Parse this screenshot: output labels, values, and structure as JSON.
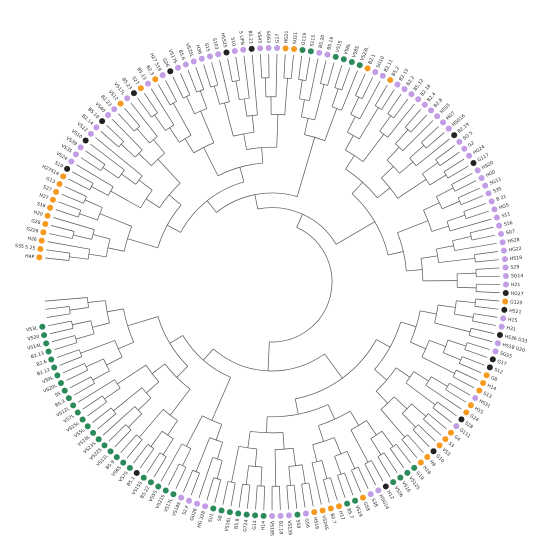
{
  "figure": {
    "kind": "circular-dendrogram",
    "leaf_order": "clockwise from top",
    "category_colors": {
      "orange": "#f59a1e",
      "black": "#222222",
      "purple": "#c39ce6",
      "green": "#2a8a5a"
    }
  },
  "leaves": [
    {
      "label": "H4P",
      "category": "orange"
    },
    {
      "label": "S35 S 25",
      "category": "orange"
    },
    {
      "label": "H26",
      "category": "orange"
    },
    {
      "label": "G226",
      "category": "orange"
    },
    {
      "label": "G26",
      "category": "orange"
    },
    {
      "label": "H20",
      "category": "orange"
    },
    {
      "label": "S16",
      "category": "orange"
    },
    {
      "label": "H27",
      "category": "orange"
    },
    {
      "label": "S27",
      "category": "orange"
    },
    {
      "label": "G13",
      "category": "orange"
    },
    {
      "label": "H27S14",
      "category": "orange"
    },
    {
      "label": "S19",
      "category": "black"
    },
    {
      "label": "VS24",
      "category": "purple"
    },
    {
      "label": "VS35",
      "category": "purple"
    },
    {
      "label": "VS39",
      "category": "purple"
    },
    {
      "label": "VS10",
      "category": "black"
    },
    {
      "label": "VS22",
      "category": "purple"
    },
    {
      "label": "B2.14",
      "category": "purple"
    },
    {
      "label": "B5.10",
      "category": "black"
    },
    {
      "label": "VS40",
      "category": "purple"
    },
    {
      "label": "B2.23",
      "category": "purple"
    },
    {
      "label": "VS12",
      "category": "orange"
    },
    {
      "label": "VS17L",
      "category": "purple"
    },
    {
      "label": "B5.23",
      "category": "black"
    },
    {
      "label": "S27",
      "category": "orange"
    },
    {
      "label": "B5.13",
      "category": "purple"
    },
    {
      "label": "B2.3",
      "category": "orange"
    },
    {
      "label": "H27 S19",
      "category": "purple"
    },
    {
      "label": "G26",
      "category": "black"
    },
    {
      "label": "VS17S",
      "category": "purple"
    },
    {
      "label": "B5.6",
      "category": "purple"
    },
    {
      "label": "VS35L",
      "category": "purple"
    },
    {
      "label": "H36",
      "category": "purple"
    },
    {
      "label": "S15",
      "category": "purple"
    },
    {
      "label": "S103",
      "category": "purple"
    },
    {
      "label": "H5S25",
      "category": "black"
    },
    {
      "label": "S10",
      "category": "purple"
    },
    {
      "label": "S UFN",
      "category": "purple"
    },
    {
      "label": "B5.21",
      "category": "black"
    },
    {
      "label": "VS45",
      "category": "purple"
    },
    {
      "label": "SG63",
      "category": "purple"
    },
    {
      "label": "G17",
      "category": "purple"
    },
    {
      "label": "HG21",
      "category": "orange"
    },
    {
      "label": "SU21",
      "category": "orange"
    },
    {
      "label": "G119",
      "category": "green"
    },
    {
      "label": "S115",
      "category": "green"
    },
    {
      "label": "B5.20",
      "category": "purple"
    },
    {
      "label": "B5.19",
      "category": "purple"
    },
    {
      "label": "VS15",
      "category": "green"
    },
    {
      "label": "VS6L",
      "category": "green"
    },
    {
      "label": "VS8S",
      "category": "green"
    },
    {
      "label": "VS23L",
      "category": "green"
    },
    {
      "label": "B2.1",
      "category": "orange"
    },
    {
      "label": "SG10",
      "category": "purple"
    },
    {
      "label": "B2.11",
      "category": "purple"
    },
    {
      "label": "B5.2",
      "category": "orange"
    },
    {
      "label": "B2.15",
      "category": "purple"
    },
    {
      "label": "B2.2",
      "category": "purple"
    },
    {
      "label": "B5.12",
      "category": "purple"
    },
    {
      "label": "B2.16",
      "category": "purple"
    },
    {
      "label": "B2.4",
      "category": "purple"
    },
    {
      "label": "B2.8",
      "category": "purple"
    },
    {
      "label": "H5S5",
      "category": "purple"
    },
    {
      "label": "HG7",
      "category": "purple"
    },
    {
      "label": "HSG16",
      "category": "purple"
    },
    {
      "label": "B2.19",
      "category": "black"
    },
    {
      "label": "SG 5",
      "category": "purple"
    },
    {
      "label": "G2",
      "category": "purple"
    },
    {
      "label": "HG24",
      "category": "purple"
    },
    {
      "label": "G117",
      "category": "black"
    },
    {
      "label": "HS20",
      "category": "purple"
    },
    {
      "label": "HG0",
      "category": "purple"
    },
    {
      "label": "SG11",
      "category": "purple"
    },
    {
      "label": "S35",
      "category": "purple"
    },
    {
      "label": "B 21",
      "category": "purple"
    },
    {
      "label": "HG5",
      "category": "purple"
    },
    {
      "label": "S11",
      "category": "purple"
    },
    {
      "label": "S16",
      "category": "purple"
    },
    {
      "label": "SG7",
      "category": "purple"
    },
    {
      "label": "HS28",
      "category": "purple"
    },
    {
      "label": "HG22",
      "category": "purple"
    },
    {
      "label": "HS18",
      "category": "purple"
    },
    {
      "label": "S29",
      "category": "purple"
    },
    {
      "label": "SG14",
      "category": "purple"
    },
    {
      "label": "H21",
      "category": "purple"
    },
    {
      "label": "HG27",
      "category": "black"
    },
    {
      "label": "G120",
      "category": "orange"
    },
    {
      "label": "H521",
      "category": "black"
    },
    {
      "label": "H15",
      "category": "purple"
    },
    {
      "label": "H31",
      "category": "purple"
    },
    {
      "label": "HS36 G33",
      "category": "black"
    },
    {
      "label": "HS18 G20",
      "category": "purple"
    },
    {
      "label": "SG25",
      "category": "purple"
    },
    {
      "label": "G17",
      "category": "black"
    },
    {
      "label": "S12",
      "category": "black"
    },
    {
      "label": "G8",
      "category": "orange"
    },
    {
      "label": "H14",
      "category": "orange"
    },
    {
      "label": "S13",
      "category": "orange"
    },
    {
      "label": "HS31",
      "category": "purple"
    },
    {
      "label": "H15",
      "category": "orange"
    },
    {
      "label": "G24",
      "category": "orange"
    },
    {
      "label": "S28",
      "category": "black"
    },
    {
      "label": "G111",
      "category": "purple"
    },
    {
      "label": "G4",
      "category": "orange"
    },
    {
      "label": "S3",
      "category": "orange"
    },
    {
      "label": "VS3",
      "category": "orange"
    },
    {
      "label": "G10",
      "category": "black"
    },
    {
      "label": "H9",
      "category": "orange"
    },
    {
      "label": "H19",
      "category": "orange"
    },
    {
      "label": "G19",
      "category": "green"
    },
    {
      "label": "VS12S",
      "category": "green"
    },
    {
      "label": "VS16",
      "category": "green"
    },
    {
      "label": "VS26",
      "category": "green"
    },
    {
      "label": "H12",
      "category": "black"
    },
    {
      "label": "HSG14",
      "category": "purple"
    },
    {
      "label": "S38",
      "category": "purple"
    },
    {
      "label": "G58",
      "category": "orange"
    },
    {
      "label": "VS19",
      "category": "green"
    },
    {
      "label": "B5.7",
      "category": "green"
    },
    {
      "label": "H17",
      "category": "orange"
    },
    {
      "label": "B2.7",
      "category": "orange"
    },
    {
      "label": "VS24S",
      "category": "orange"
    },
    {
      "label": "HS16",
      "category": "orange"
    },
    {
      "label": "G56",
      "category": "purple"
    },
    {
      "label": "S58",
      "category": "green"
    },
    {
      "label": "VS13S",
      "category": "purple"
    },
    {
      "label": "B2.18",
      "category": "purple"
    },
    {
      "label": "VS18S",
      "category": "purple"
    },
    {
      "label": "H14",
      "category": "green"
    },
    {
      "label": "G14",
      "category": "green"
    },
    {
      "label": "G724",
      "category": "green"
    },
    {
      "label": "B5.8",
      "category": "green"
    },
    {
      "label": "VS16L",
      "category": "green"
    },
    {
      "label": "S8",
      "category": "green"
    },
    {
      "label": "SU1",
      "category": "green"
    },
    {
      "label": "HG 328",
      "category": "purple"
    },
    {
      "label": "GU26",
      "category": "purple"
    },
    {
      "label": "S2.F",
      "category": "purple"
    },
    {
      "label": "VS18S",
      "category": "purple"
    },
    {
      "label": "VS17L",
      "category": "green"
    },
    {
      "label": "VS21S",
      "category": "green"
    },
    {
      "label": "VS5S",
      "category": "green"
    },
    {
      "label": "B5.22",
      "category": "green"
    },
    {
      "label": "VS15S",
      "category": "green"
    },
    {
      "label": "B5.1",
      "category": "black"
    },
    {
      "label": "VS7S",
      "category": "green"
    },
    {
      "label": "VS6S",
      "category": "green"
    },
    {
      "label": "B5.9",
      "category": "green"
    },
    {
      "label": "VS11L",
      "category": "green"
    },
    {
      "label": "VS22S",
      "category": "green"
    },
    {
      "label": "VS23S",
      "category": "green"
    },
    {
      "label": "VS10L",
      "category": "green"
    },
    {
      "label": "VS5L",
      "category": "green"
    },
    {
      "label": "VS25L",
      "category": "green"
    },
    {
      "label": "VS7L",
      "category": "green"
    },
    {
      "label": "VS12L",
      "category": "green"
    },
    {
      "label": "B5.3",
      "category": "green"
    },
    {
      "label": "S5",
      "category": "green"
    },
    {
      "label": "VS20L",
      "category": "green"
    },
    {
      "label": "VS9L",
      "category": "green"
    },
    {
      "label": "B2.12",
      "category": "green"
    },
    {
      "label": "B2.6",
      "category": "green"
    },
    {
      "label": "B2.13",
      "category": "green"
    },
    {
      "label": "VS14L",
      "category": "green"
    },
    {
      "label": "VS20",
      "category": "green"
    },
    {
      "label": "VS3L",
      "category": "green"
    }
  ]
}
